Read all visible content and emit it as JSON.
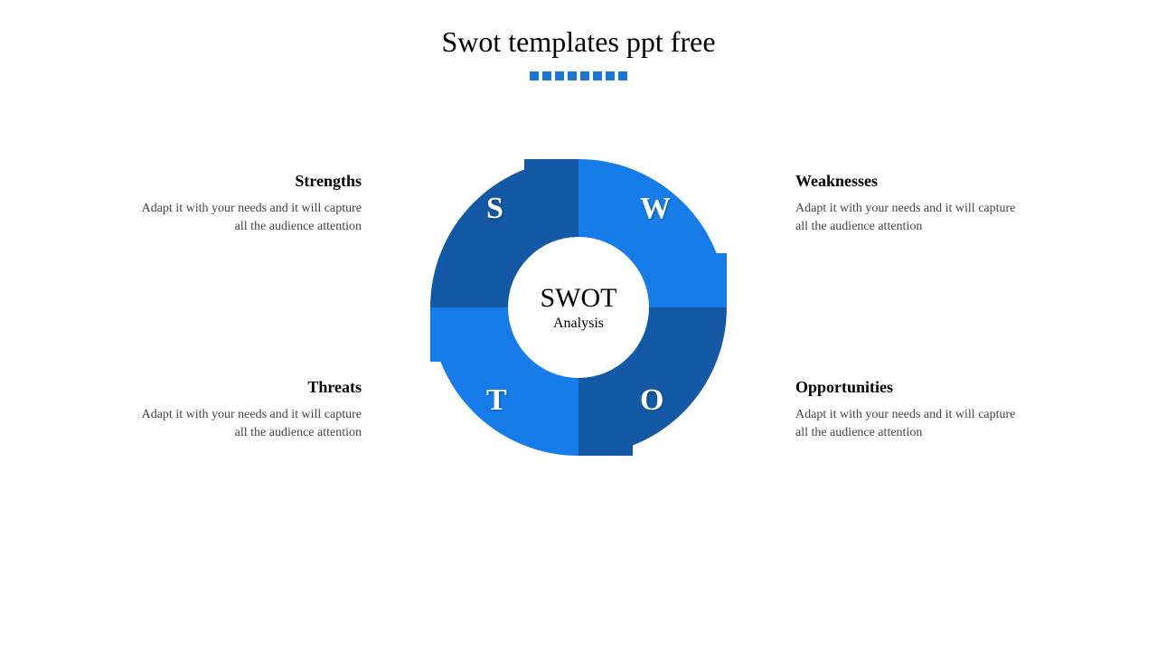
{
  "title": "Swot templates ppt free",
  "decoration": {
    "dot_count": 8,
    "dot_color": "#1976d2"
  },
  "center": {
    "title": "SWOT",
    "subtitle": "Analysis"
  },
  "diagram": {
    "type": "donut-quadrant",
    "outer_radius": 164,
    "inner_radius": 78,
    "tab_size": 60,
    "colors": {
      "dark": "#1459a5",
      "light": "#157cea",
      "background": "#ffffff"
    },
    "quadrants": [
      {
        "key": "s",
        "letter": "S",
        "fill": "dark",
        "tab_side": "top"
      },
      {
        "key": "w",
        "letter": "W",
        "fill": "light",
        "tab_side": "right"
      },
      {
        "key": "o",
        "letter": "O",
        "fill": "dark",
        "tab_side": "bottom"
      },
      {
        "key": "t",
        "letter": "T",
        "fill": "light",
        "tab_side": "left"
      }
    ]
  },
  "labels": {
    "s": {
      "title": "Strengths",
      "desc": "Adapt it with your needs and it will capture all the audience attention"
    },
    "w": {
      "title": "Weaknesses",
      "desc": "Adapt it with your needs and it will capture all the audience attention"
    },
    "t": {
      "title": "Threats",
      "desc": "Adapt it with your needs and it will capture all the audience attention"
    },
    "o": {
      "title": "Opportunities",
      "desc": "Adapt it with your needs and it will capture all the audience attention"
    }
  },
  "typography": {
    "title_fontsize": 32,
    "label_title_fontsize": 18,
    "label_desc_fontsize": 14,
    "center_title_fontsize": 30,
    "center_sub_fontsize": 16,
    "quadrant_letter_fontsize": 34
  }
}
